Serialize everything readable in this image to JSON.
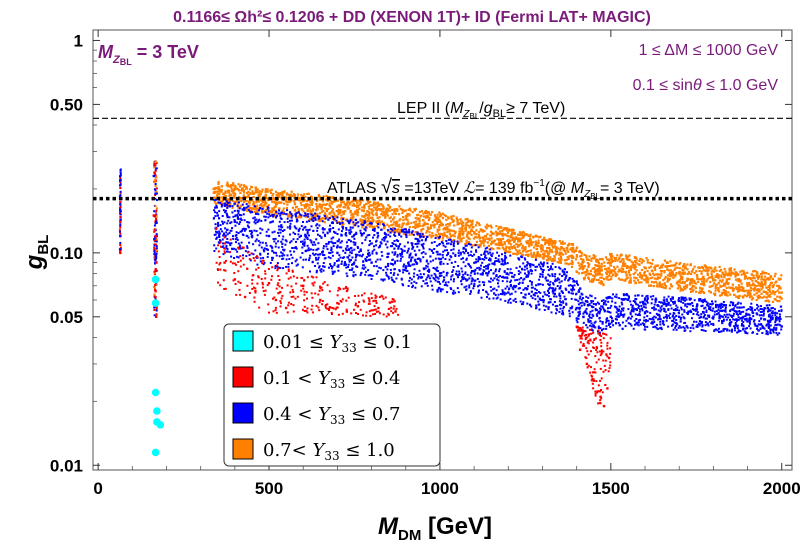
{
  "chart_data": {
    "type": "scatter",
    "title": "0.1166≤ Ωh²≤ 0.1206 + DD (XENON 1T)+ ID (Fermi LAT+ MAGIC)",
    "xlabel": "M_DM [GeV]",
    "ylabel": "g_BL",
    "x_scale": "linear",
    "y_scale": "log",
    "xlim": [
      -15,
      2030
    ],
    "ylim": [
      0.0095,
      1.12
    ],
    "x_ticks": [
      0,
      500,
      1000,
      1500,
      2000
    ],
    "x_tick_labels": [
      "0",
      "500",
      "1000",
      "1500",
      "2000"
    ],
    "y_ticks": [
      0.01,
      0.05,
      0.1,
      0.5,
      1
    ],
    "y_tick_labels": [
      "0.01",
      "0.05",
      "0.10",
      "0.50",
      "1"
    ],
    "annotations": {
      "mass_label": "M_Z_BL = 3 TeV",
      "delta_m": "1 ≤ ΔM ≤ 1000 GeV",
      "sin_theta": "0.1 ≤ sinθ ≤ 1.0 GeV"
    },
    "reference_lines": [
      {
        "name": "LEP II",
        "label": "LEP II (M_Z_BL/g_BL≥ 7 TeV)",
        "y": 0.43,
        "style": "dashed"
      },
      {
        "name": "ATLAS",
        "label": "ATLAS √s =13TeV ℒ= 139 fb⁻¹(@ M_Z_BL= 3 TeV)",
        "y": 0.18,
        "style": "dotted"
      }
    ],
    "legend": {
      "position": "center-left",
      "entries": [
        {
          "label": "0.01 ≤ Y33 ≤ 0.1",
          "color": "#00ffff"
        },
        {
          "label": "0.1 < Y33 ≤ 0.4",
          "color": "#ff0000"
        },
        {
          "label": "0.4 < Y33 ≤ 0.7",
          "color": "#0000ff"
        },
        {
          "label": "0.7< Y33 ≤ 1.0",
          "color": "#ff8000"
        }
      ]
    },
    "series": [
      {
        "name": "0.01 ≤ Y33 ≤ 0.1",
        "color": "#00ffff",
        "marker": "large-dot",
        "points": [
          [
            168,
            0.075
          ],
          [
            168,
            0.058
          ],
          [
            168,
            0.022
          ],
          [
            172,
            0.018
          ],
          [
            172,
            0.016
          ],
          [
            182,
            0.0155
          ],
          [
            168,
            0.0115
          ]
        ]
      },
      {
        "name": "0.1 < Y33 ≤ 0.4",
        "color": "#ff0000",
        "marker": "small-dot",
        "points": [
          [
            65,
            0.14
          ],
          [
            65,
            0.1
          ],
          [
            163,
            0.15
          ],
          [
            168,
            0.12
          ],
          [
            170,
            0.09
          ],
          [
            168,
            0.066
          ],
          [
            170,
            0.05
          ],
          [
            345,
            0.13
          ],
          [
            370,
            0.09
          ],
          [
            400,
            0.075
          ],
          [
            430,
            0.062
          ],
          [
            460,
            0.066
          ],
          [
            500,
            0.072
          ],
          [
            520,
            0.06
          ],
          [
            550,
            0.055
          ],
          [
            600,
            0.07
          ],
          [
            650,
            0.06
          ],
          [
            700,
            0.058
          ],
          [
            760,
            0.056
          ],
          [
            820,
            0.055
          ],
          [
            870,
            0.053
          ],
          [
            1410,
            0.035
          ],
          [
            1430,
            0.03
          ],
          [
            1450,
            0.025
          ],
          [
            1470,
            0.021
          ],
          [
            1480,
            0.019
          ],
          [
            1490,
            0.023
          ],
          [
            1495,
            0.032
          ]
        ]
      },
      {
        "name": "0.4 < Y33 ≤ 0.7",
        "color": "#0000ff",
        "marker": "small-dot",
        "points": [
          [
            65,
            0.22
          ],
          [
            65,
            0.12
          ],
          [
            163,
            0.23
          ],
          [
            168,
            0.19
          ],
          [
            170,
            0.14
          ],
          [
            350,
            0.15
          ],
          [
            400,
            0.14
          ],
          [
            500,
            0.12
          ],
          [
            600,
            0.11
          ],
          [
            700,
            0.1
          ],
          [
            800,
            0.09
          ],
          [
            900,
            0.085
          ],
          [
            1000,
            0.08
          ],
          [
            1100,
            0.07
          ],
          [
            1200,
            0.065
          ],
          [
            1300,
            0.06
          ],
          [
            1400,
            0.055
          ],
          [
            1420,
            0.05
          ],
          [
            1450,
            0.045
          ],
          [
            1500,
            0.05
          ],
          [
            1600,
            0.052
          ],
          [
            1700,
            0.05
          ],
          [
            1800,
            0.05
          ],
          [
            2000,
            0.045
          ]
        ]
      },
      {
        "name": "0.7< Y33 ≤ 1.0",
        "color": "#ff8000",
        "marker": "small-dot",
        "points": [
          [
            338,
            0.2
          ],
          [
            400,
            0.19
          ],
          [
            500,
            0.18
          ],
          [
            600,
            0.175
          ],
          [
            700,
            0.165
          ],
          [
            800,
            0.16
          ],
          [
            900,
            0.145
          ],
          [
            1000,
            0.135
          ],
          [
            1100,
            0.125
          ],
          [
            1200,
            0.115
          ],
          [
            1300,
            0.105
          ],
          [
            1390,
            0.095
          ],
          [
            1420,
            0.085
          ],
          [
            1500,
            0.09
          ],
          [
            1600,
            0.085
          ],
          [
            1700,
            0.08
          ],
          [
            1800,
            0.075
          ],
          [
            1900,
            0.07
          ],
          [
            2000,
            0.065
          ]
        ]
      }
    ]
  }
}
